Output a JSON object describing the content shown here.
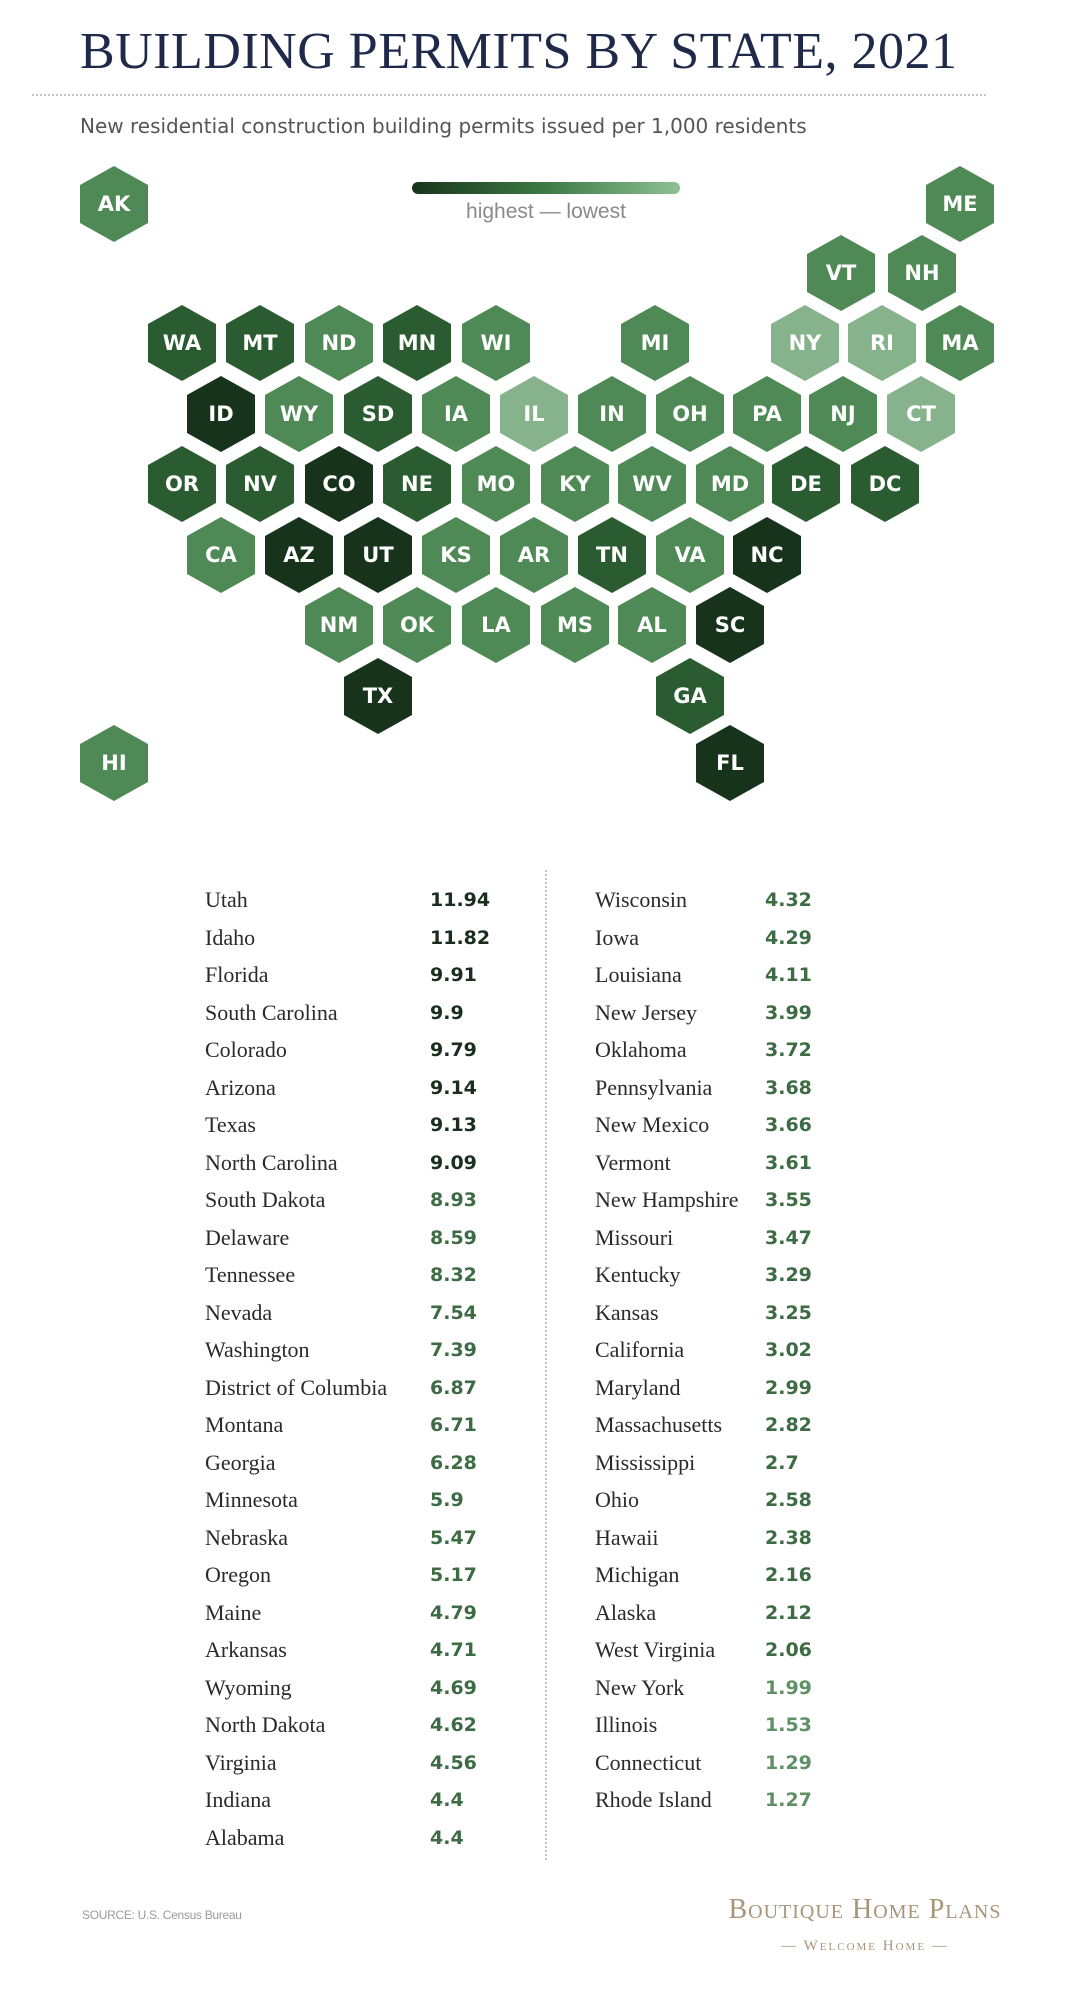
{
  "header": {
    "title": "BUILDING PERMITS BY STATE, 2021",
    "subtitle": "New residential construction building permits issued per 1,000 residents"
  },
  "legend": {
    "label": "highest — lowest",
    "colors": [
      "#17351c",
      "#3d7a45",
      "#8ec195"
    ]
  },
  "color_scale": {
    "d1": "#17331c",
    "d2": "#2b5c31",
    "d3": "#3e7b46",
    "d4": "#4f8a56",
    "d5": "#6aa171",
    "d6": "#86b38c"
  },
  "value_colors": {
    "dark": "#1b2e1d",
    "mid": "#3d6b43",
    "light": "#5f9066"
  },
  "map": {
    "hexes": [
      {
        "abbr": "AK",
        "tone": "d4"
      },
      {
        "abbr": "ME",
        "tone": "d4"
      },
      {
        "abbr": "VT",
        "tone": "d4"
      },
      {
        "abbr": "NH",
        "tone": "d4"
      },
      {
        "abbr": "WA",
        "tone": "d2"
      },
      {
        "abbr": "MT",
        "tone": "d2"
      },
      {
        "abbr": "ND",
        "tone": "d4"
      },
      {
        "abbr": "MN",
        "tone": "d2"
      },
      {
        "abbr": "WI",
        "tone": "d4"
      },
      {
        "abbr": "MI",
        "tone": "d4"
      },
      {
        "abbr": "NY",
        "tone": "d6"
      },
      {
        "abbr": "RI",
        "tone": "d6"
      },
      {
        "abbr": "MA",
        "tone": "d4"
      },
      {
        "abbr": "ID",
        "tone": "d1"
      },
      {
        "abbr": "WY",
        "tone": "d4"
      },
      {
        "abbr": "SD",
        "tone": "d2"
      },
      {
        "abbr": "IA",
        "tone": "d4"
      },
      {
        "abbr": "IL",
        "tone": "d6"
      },
      {
        "abbr": "IN",
        "tone": "d4"
      },
      {
        "abbr": "OH",
        "tone": "d4"
      },
      {
        "abbr": "PA",
        "tone": "d4"
      },
      {
        "abbr": "NJ",
        "tone": "d4"
      },
      {
        "abbr": "CT",
        "tone": "d6"
      },
      {
        "abbr": "OR",
        "tone": "d2"
      },
      {
        "abbr": "NV",
        "tone": "d2"
      },
      {
        "abbr": "CO",
        "tone": "d1"
      },
      {
        "abbr": "NE",
        "tone": "d2"
      },
      {
        "abbr": "MO",
        "tone": "d4"
      },
      {
        "abbr": "KY",
        "tone": "d4"
      },
      {
        "abbr": "WV",
        "tone": "d4"
      },
      {
        "abbr": "MD",
        "tone": "d4"
      },
      {
        "abbr": "DE",
        "tone": "d2"
      },
      {
        "abbr": "DC",
        "tone": "d2"
      },
      {
        "abbr": "CA",
        "tone": "d4"
      },
      {
        "abbr": "AZ",
        "tone": "d1"
      },
      {
        "abbr": "UT",
        "tone": "d1"
      },
      {
        "abbr": "KS",
        "tone": "d4"
      },
      {
        "abbr": "AR",
        "tone": "d4"
      },
      {
        "abbr": "TN",
        "tone": "d2"
      },
      {
        "abbr": "VA",
        "tone": "d4"
      },
      {
        "abbr": "NC",
        "tone": "d1"
      },
      {
        "abbr": "NM",
        "tone": "d4"
      },
      {
        "abbr": "OK",
        "tone": "d4"
      },
      {
        "abbr": "LA",
        "tone": "d4"
      },
      {
        "abbr": "MS",
        "tone": "d4"
      },
      {
        "abbr": "AL",
        "tone": "d4"
      },
      {
        "abbr": "SC",
        "tone": "d1"
      },
      {
        "abbr": "TX",
        "tone": "d1"
      },
      {
        "abbr": "GA",
        "tone": "d2"
      },
      {
        "abbr": "HI",
        "tone": "d4"
      },
      {
        "abbr": "FL",
        "tone": "d1"
      }
    ]
  },
  "rankings": {
    "left": [
      {
        "state": "Utah",
        "value": "11.94",
        "tone": "dark"
      },
      {
        "state": "Idaho",
        "value": "11.82",
        "tone": "dark"
      },
      {
        "state": "Florida",
        "value": "9.91",
        "tone": "dark"
      },
      {
        "state": "South Carolina",
        "value": "9.9",
        "tone": "dark"
      },
      {
        "state": "Colorado",
        "value": "9.79",
        "tone": "dark"
      },
      {
        "state": "Arizona",
        "value": "9.14",
        "tone": "dark"
      },
      {
        "state": "Texas",
        "value": "9.13",
        "tone": "dark"
      },
      {
        "state": "North Carolina",
        "value": "9.09",
        "tone": "dark"
      },
      {
        "state": "South Dakota",
        "value": "8.93",
        "tone": "mid"
      },
      {
        "state": "Delaware",
        "value": "8.59",
        "tone": "mid"
      },
      {
        "state": "Tennessee",
        "value": "8.32",
        "tone": "mid"
      },
      {
        "state": "Nevada",
        "value": "7.54",
        "tone": "mid"
      },
      {
        "state": "Washington",
        "value": "7.39",
        "tone": "mid"
      },
      {
        "state": "District of Columbia",
        "value": "6.87",
        "tone": "mid"
      },
      {
        "state": "Montana",
        "value": "6.71",
        "tone": "mid"
      },
      {
        "state": "Georgia",
        "value": "6.28",
        "tone": "mid"
      },
      {
        "state": "Minnesota",
        "value": "5.9",
        "tone": "mid"
      },
      {
        "state": "Nebraska",
        "value": "5.47",
        "tone": "mid"
      },
      {
        "state": "Oregon",
        "value": "5.17",
        "tone": "mid"
      },
      {
        "state": "Maine",
        "value": "4.79",
        "tone": "mid"
      },
      {
        "state": "Arkansas",
        "value": "4.71",
        "tone": "mid"
      },
      {
        "state": "Wyoming",
        "value": "4.69",
        "tone": "mid"
      },
      {
        "state": "North Dakota",
        "value": "4.62",
        "tone": "mid"
      },
      {
        "state": "Virginia",
        "value": "4.56",
        "tone": "mid"
      },
      {
        "state": "Indiana",
        "value": "4.4",
        "tone": "mid"
      },
      {
        "state": "Alabama",
        "value": "4.4",
        "tone": "mid"
      }
    ],
    "right": [
      {
        "state": "Wisconsin",
        "value": "4.32",
        "tone": "mid"
      },
      {
        "state": "Iowa",
        "value": "4.29",
        "tone": "mid"
      },
      {
        "state": "Louisiana",
        "value": "4.11",
        "tone": "mid"
      },
      {
        "state": "New Jersey",
        "value": "3.99",
        "tone": "mid"
      },
      {
        "state": "Oklahoma",
        "value": "3.72",
        "tone": "mid"
      },
      {
        "state": "Pennsylvania",
        "value": "3.68",
        "tone": "mid"
      },
      {
        "state": "New Mexico",
        "value": "3.66",
        "tone": "mid"
      },
      {
        "state": "Vermont",
        "value": "3.61",
        "tone": "mid"
      },
      {
        "state": "New Hampshire",
        "value": "3.55",
        "tone": "mid"
      },
      {
        "state": "Missouri",
        "value": "3.47",
        "tone": "mid"
      },
      {
        "state": "Kentucky",
        "value": "3.29",
        "tone": "mid"
      },
      {
        "state": "Kansas",
        "value": "3.25",
        "tone": "mid"
      },
      {
        "state": "California",
        "value": "3.02",
        "tone": "mid"
      },
      {
        "state": "Maryland",
        "value": "2.99",
        "tone": "mid"
      },
      {
        "state": "Massachusetts",
        "value": "2.82",
        "tone": "mid"
      },
      {
        "state": "Mississippi",
        "value": "2.7",
        "tone": "mid"
      },
      {
        "state": "Ohio",
        "value": "2.58",
        "tone": "mid"
      },
      {
        "state": "Hawaii",
        "value": "2.38",
        "tone": "mid"
      },
      {
        "state": "Michigan",
        "value": "2.16",
        "tone": "mid"
      },
      {
        "state": "Alaska",
        "value": "2.12",
        "tone": "mid"
      },
      {
        "state": "West Virginia",
        "value": "2.06",
        "tone": "mid"
      },
      {
        "state": "New York",
        "value": "1.99",
        "tone": "light"
      },
      {
        "state": "Illinois",
        "value": "1.53",
        "tone": "light"
      },
      {
        "state": "Connecticut",
        "value": "1.29",
        "tone": "light"
      },
      {
        "state": "Rhode Island",
        "value": "1.27",
        "tone": "light"
      }
    ]
  },
  "footer": {
    "source": "SOURCE: U.S. Census Bureau",
    "brand": "Boutique Home Plans",
    "tagline": "— Welcome Home —"
  }
}
